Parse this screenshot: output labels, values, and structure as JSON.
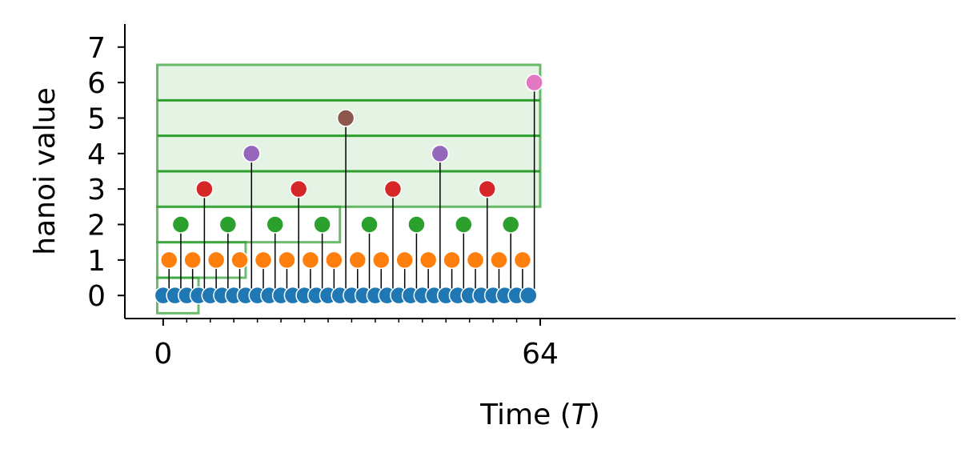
{
  "chart_data": {
    "type": "scatter",
    "title": "",
    "xlabel": "Time (",
    "xlabel_var": "T",
    "xlabel_end": ")",
    "ylabel": "hanoi value",
    "xlim": [
      -6.5,
      134.5
    ],
    "ylim": [
      -0.65,
      7.65
    ],
    "x_ticks": [
      0,
      64
    ],
    "x_tick_labels": [
      "0",
      "64"
    ],
    "x_minor_ticks": [
      4,
      8,
      12,
      16,
      20,
      24,
      28,
      32,
      36,
      40,
      44,
      48,
      52,
      56,
      60
    ],
    "y_ticks": [
      0,
      1,
      2,
      3,
      4,
      5,
      6,
      7
    ],
    "y_tick_labels": [
      "0",
      "1",
      "2",
      "3",
      "4",
      "5",
      "6",
      "7"
    ],
    "grid": false,
    "spines": [
      "left",
      "bottom"
    ],
    "marker_colors": {
      "0": "#1f77b4",
      "1": "#ff7f0e",
      "2": "#2ca02c",
      "3": "#d62728",
      "4": "#9467bd",
      "5": "#8c564b",
      "6": "#e377c2"
    },
    "stem_color": "#000000",
    "box_color": "#2ca02c",
    "series": [
      {
        "x": [
          0,
          1,
          2,
          3,
          4,
          5,
          6,
          7,
          8,
          9,
          10,
          11,
          12,
          13,
          14,
          15,
          16,
          17,
          18,
          19,
          20,
          21,
          22,
          23,
          24,
          25,
          26,
          27,
          28,
          29,
          30,
          31,
          32,
          33,
          34,
          35,
          36,
          37,
          38,
          39,
          40,
          41,
          42,
          43,
          44,
          45,
          46,
          47,
          48,
          49,
          50,
          51,
          52,
          53,
          54,
          55,
          56,
          57,
          58,
          59,
          60,
          61,
          62,
          63
        ],
        "values": [
          0,
          1,
          0,
          2,
          0,
          1,
          0,
          3,
          0,
          1,
          0,
          2,
          0,
          1,
          0,
          4,
          0,
          1,
          0,
          2,
          0,
          1,
          0,
          3,
          0,
          1,
          0,
          2,
          0,
          1,
          0,
          5,
          0,
          1,
          0,
          2,
          0,
          1,
          0,
          3,
          0,
          1,
          0,
          2,
          0,
          1,
          0,
          4,
          0,
          1,
          0,
          2,
          0,
          1,
          0,
          3,
          0,
          1,
          0,
          2,
          0,
          1,
          0,
          6
        ]
      }
    ],
    "boxes": [
      {
        "x0": -1,
        "x1": 6,
        "y0": -0.5,
        "y1": 0.5
      },
      {
        "x0": -1,
        "x1": 14,
        "y0": 0.5,
        "y1": 1.5
      },
      {
        "x0": -1,
        "x1": 30,
        "y0": 1.5,
        "y1": 2.5
      },
      {
        "x0": -1,
        "x1": 64,
        "y0": 2.5,
        "y1": 6.5
      }
    ],
    "box_dividers": [
      3.5,
      4.5,
      5.5
    ]
  }
}
